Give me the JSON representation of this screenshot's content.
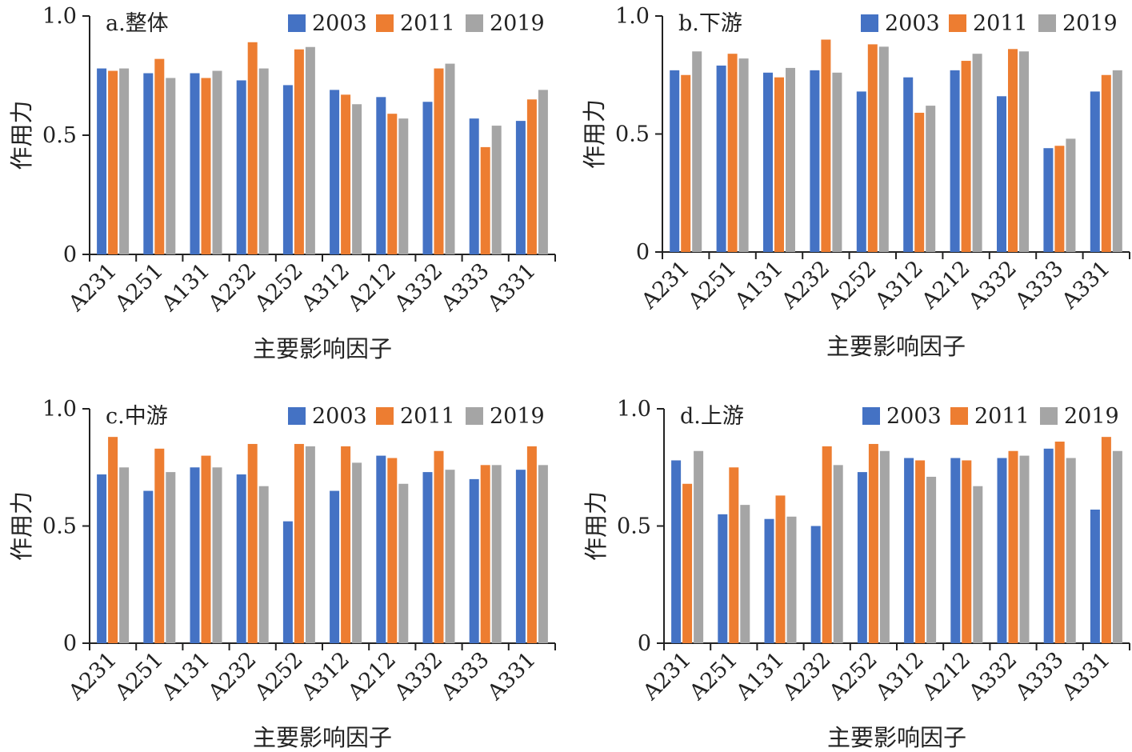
{
  "chart_data": [
    {
      "type": "bar",
      "title": "a.整体",
      "xlabel": "主要影响因子",
      "ylabel": "作用力",
      "ylim": [
        0,
        1.0
      ],
      "yticks": [
        "0",
        "0.5",
        "1.0"
      ],
      "legend_position": "top",
      "categories": [
        "A231",
        "A251",
        "A131",
        "A232",
        "A252",
        "A312",
        "A212",
        "A332",
        "A333",
        "A331"
      ],
      "series": [
        {
          "name": "2003",
          "values": [
            0.78,
            0.76,
            0.76,
            0.73,
            0.71,
            0.69,
            0.66,
            0.64,
            0.57,
            0.56
          ]
        },
        {
          "name": "2011",
          "values": [
            0.77,
            0.82,
            0.74,
            0.89,
            0.86,
            0.67,
            0.59,
            0.78,
            0.45,
            0.65
          ]
        },
        {
          "name": "2019",
          "values": [
            0.78,
            0.74,
            0.77,
            0.78,
            0.87,
            0.63,
            0.57,
            0.8,
            0.54,
            0.69
          ]
        }
      ]
    },
    {
      "type": "bar",
      "title": "b.下游",
      "xlabel": "主要影响因子",
      "ylabel": "作用力",
      "ylim": [
        0,
        1.0
      ],
      "yticks": [
        "0",
        "0.5",
        "1.0"
      ],
      "legend_position": "top",
      "categories": [
        "A231",
        "A251",
        "A131",
        "A232",
        "A252",
        "A312",
        "A212",
        "A332",
        "A333",
        "A331"
      ],
      "series": [
        {
          "name": "2003",
          "values": [
            0.77,
            0.79,
            0.76,
            0.77,
            0.68,
            0.74,
            0.77,
            0.66,
            0.44,
            0.68
          ]
        },
        {
          "name": "2011",
          "values": [
            0.75,
            0.84,
            0.74,
            0.9,
            0.88,
            0.59,
            0.81,
            0.86,
            0.45,
            0.75
          ]
        },
        {
          "name": "2019",
          "values": [
            0.85,
            0.82,
            0.78,
            0.76,
            0.87,
            0.62,
            0.84,
            0.85,
            0.48,
            0.77
          ]
        }
      ]
    },
    {
      "type": "bar",
      "title": "c.中游",
      "xlabel": "主要影响因子",
      "ylabel": "作用力",
      "ylim": [
        0,
        1.0
      ],
      "yticks": [
        "0",
        "0.5",
        "1.0"
      ],
      "legend_position": "top",
      "categories": [
        "A231",
        "A251",
        "A131",
        "A232",
        "A252",
        "A312",
        "A212",
        "A332",
        "A333",
        "A331"
      ],
      "series": [
        {
          "name": "2003",
          "values": [
            0.72,
            0.65,
            0.75,
            0.72,
            0.52,
            0.65,
            0.8,
            0.73,
            0.7,
            0.74
          ]
        },
        {
          "name": "2011",
          "values": [
            0.88,
            0.83,
            0.8,
            0.85,
            0.85,
            0.84,
            0.79,
            0.82,
            0.76,
            0.84
          ]
        },
        {
          "name": "2019",
          "values": [
            0.75,
            0.73,
            0.75,
            0.67,
            0.84,
            0.77,
            0.68,
            0.74,
            0.76,
            0.76
          ]
        }
      ]
    },
    {
      "type": "bar",
      "title": "d.上游",
      "xlabel": "主要影响因子",
      "ylabel": "作用力",
      "ylim": [
        0,
        1.0
      ],
      "yticks": [
        "0",
        "0.5",
        "1.0"
      ],
      "legend_position": "top",
      "categories": [
        "A231",
        "A251",
        "A131",
        "A232",
        "A252",
        "A312",
        "A212",
        "A332",
        "A333",
        "A331"
      ],
      "series": [
        {
          "name": "2003",
          "values": [
            0.78,
            0.55,
            0.53,
            0.5,
            0.73,
            0.79,
            0.79,
            0.79,
            0.83,
            0.57
          ]
        },
        {
          "name": "2011",
          "values": [
            0.68,
            0.75,
            0.63,
            0.84,
            0.85,
            0.78,
            0.78,
            0.82,
            0.86,
            0.88
          ]
        },
        {
          "name": "2019",
          "values": [
            0.82,
            0.59,
            0.54,
            0.76,
            0.82,
            0.71,
            0.67,
            0.8,
            0.79,
            0.82
          ]
        }
      ]
    }
  ],
  "colors": {
    "2003": "#4472c4",
    "2011": "#ed7d31",
    "2019": "#a5a5a5",
    "axis": "#222222",
    "text": "#222222"
  }
}
